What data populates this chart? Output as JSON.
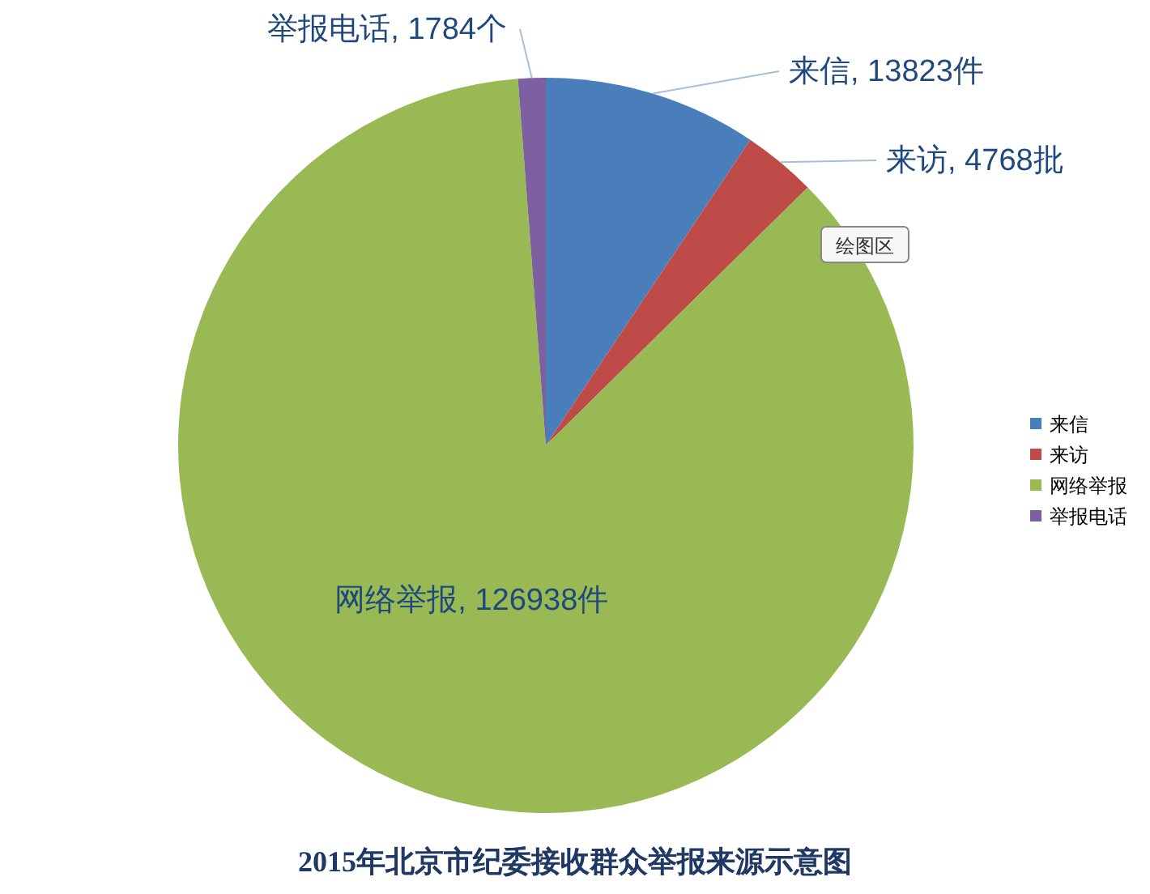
{
  "chart_data": {
    "type": "pie",
    "title": "2015年北京市纪委接收群众举报来源示意图",
    "categories": [
      "来信",
      "来访",
      "网络举报",
      "举报电话"
    ],
    "values": [
      13823,
      4768,
      126938,
      1784
    ],
    "colors": [
      "#4a7ebb",
      "#be4b48",
      "#98b954",
      "#7d60a0"
    ],
    "value_labels": [
      "来信, 13823件",
      "来访, 4768批",
      "网络举报, 126938件",
      "举报电话, 1784个"
    ],
    "legend": "right",
    "annotations": [
      "绘图区"
    ]
  }
}
